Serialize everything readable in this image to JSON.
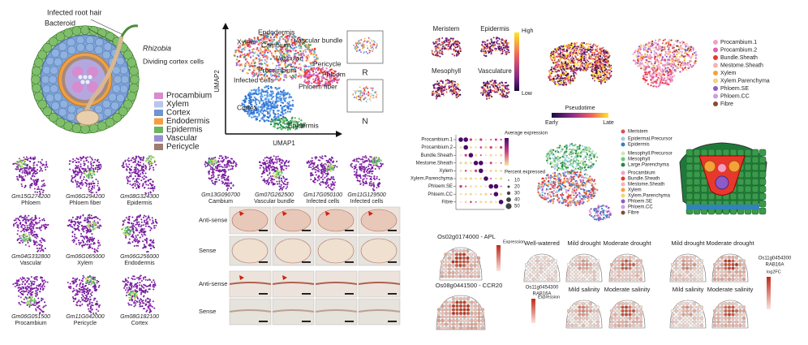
{
  "root_diagram": {
    "callouts": [
      "Infected root hair",
      "Bacteroid",
      "Rhizobia",
      "Dividing cortex cells"
    ],
    "legend": [
      {
        "label": "Procambium",
        "color": "#d68ccf"
      },
      {
        "label": "Xylem",
        "color": "#b9c6ec"
      },
      {
        "label": "Cortex",
        "color": "#6f95cf"
      },
      {
        "label": "Endodermis",
        "color": "#f0a040"
      },
      {
        "label": "Epidermis",
        "color": "#6cb463"
      },
      {
        "label": "Vascular",
        "color": "#9a8ed0"
      },
      {
        "label": "Pericycle",
        "color": "#9c7e6e"
      }
    ]
  },
  "umap": {
    "x_axis": "UMAP1",
    "y_axis": "UMAP2",
    "clusters": [
      "Endodermis",
      "Xylem",
      "Cambium",
      "Vascular bundle",
      "Vascular",
      "Pericycle",
      "Procambium",
      "Phloem",
      "Infected cells",
      "Phloem fiber",
      "Cortex",
      "Epidermis"
    ],
    "insets": [
      "R",
      "N"
    ]
  },
  "feature_plots": [
    {
      "gene": "Gm15G274200",
      "cell_type": "Phloem"
    },
    {
      "gene": "Gm06G294200",
      "cell_type": "Phloem fiber"
    },
    {
      "gene": "Gm08G324300",
      "cell_type": "Epidermis"
    },
    {
      "gene": "Gm04G332800",
      "cell_type": "Vascular"
    },
    {
      "gene": "Gm06G065000",
      "cell_type": "Xylem"
    },
    {
      "gene": "Gm06G256000",
      "cell_type": "Endodermis"
    },
    {
      "gene": "Gm06G051500",
      "cell_type": "Procambium"
    },
    {
      "gene": "Gm11G042000",
      "cell_type": "Pericycle"
    },
    {
      "gene": "Gm08G182100",
      "cell_type": "Cortex"
    }
  ],
  "in_situ": {
    "genes": [
      {
        "gene": "Gm13G090700",
        "cell_type": "Cambium"
      },
      {
        "gene": "Gm07G262500",
        "cell_type": "Vascular bundle"
      },
      {
        "gene": "Gm17G050100",
        "cell_type": "Infected cells"
      },
      {
        "gene": "Gm11G129500",
        "cell_type": "Infected cells"
      }
    ],
    "row_labels": [
      "Anti-sense",
      "Sense",
      "Anti-sense",
      "Sense"
    ]
  },
  "rice_markers": {
    "panels": [
      "Meristem",
      "Epidermis",
      "Mesophyll",
      "Vasculature"
    ],
    "scale": [
      "High",
      "Low"
    ]
  },
  "pseudotime": {
    "title": "Pseudotime",
    "scale": [
      "Early",
      "Late"
    ]
  },
  "vascular_clusters": [
    {
      "label": "Procambium.1",
      "color": "#f2a0c8"
    },
    {
      "label": "Procambium.2",
      "color": "#e060a8"
    },
    {
      "label": "Bundle.Sheath",
      "color": "#e8382c"
    },
    {
      "label": "Mestome.Sheath",
      "color": "#f3b4b0"
    },
    {
      "label": "Xylem",
      "color": "#f4a23a"
    },
    {
      "label": "Xylem.Parenchyma",
      "color": "#f7d07a"
    },
    {
      "label": "Phloem.SE",
      "color": "#8e5ac8"
    },
    {
      "label": "Phloem.CC",
      "color": "#c9a0e0"
    },
    {
      "label": "Fibre",
      "color": "#8a4a2a"
    }
  ],
  "dot_plot": {
    "rows": [
      "Procambium.1",
      "Procambium.2",
      "Bundle.Sheath",
      "Mestome.Sheath",
      "Xylem",
      "Xylem.Parenchyma",
      "Phloem.SE",
      "Phloem.CC",
      "Fibre"
    ],
    "color_title": "Average expression",
    "size_title": "Percent expressed",
    "size_ticks": [
      "10",
      "20",
      "30",
      "40",
      "50"
    ]
  },
  "tissue_legend": [
    {
      "label": "Meristem",
      "color": "#d9534f"
    },
    {
      "label": "Epidermal.Precursor",
      "color": "#9ecae1"
    },
    {
      "label": "Epidermis",
      "color": "#3182bd"
    },
    {
      "label": "Mesophyll.Precursor",
      "color": "#c7e9c0"
    },
    {
      "label": "Mesophyll",
      "color": "#74c476"
    },
    {
      "label": "Large.Parenchyma",
      "color": "#238b45"
    },
    {
      "label": "Procambium",
      "color": "#f2a0c8"
    },
    {
      "label": "Bundle.Sheath",
      "color": "#e8382c"
    },
    {
      "label": "Mestome.Sheath",
      "color": "#f3b4b0"
    },
    {
      "label": "Xylem",
      "color": "#f4a23a"
    },
    {
      "label": "Xylem.Parenchyma",
      "color": "#f7d07a"
    },
    {
      "label": "Phloem.SE",
      "color": "#8e5ac8"
    },
    {
      "label": "Phloem.CC",
      "color": "#c9a0e0"
    },
    {
      "label": "Fibre",
      "color": "#8a4a2a"
    }
  ],
  "expression_sections": {
    "genes": [
      "Os02g0174000 - APL",
      "Os08g0441500 - CCR20"
    ],
    "scale_title": "Expression"
  },
  "stress_a": {
    "conditions": [
      "Well-watered",
      "Mild drought",
      "Moderate drought",
      "Mild salinity",
      "Moderate salinity"
    ],
    "gene": "Os11g0454300",
    "protein": "RAB16A",
    "scale_title": "Expression"
  },
  "stress_b": {
    "conditions": [
      "Mild drought",
      "Moderate drought",
      "Mild salinity",
      "Moderate salinity"
    ],
    "gene": "Os11g0454300",
    "protein": "RAB16A",
    "scale_title": "log2FC"
  }
}
